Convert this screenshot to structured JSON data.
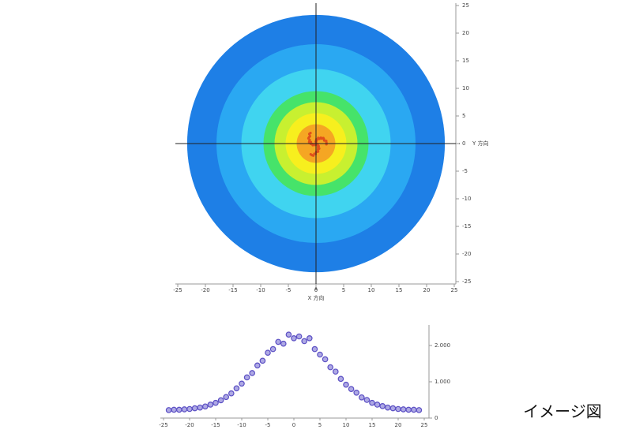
{
  "caption": "イメージ図",
  "chart_data": [
    {
      "type": "heatmap",
      "x_label": "X 方向",
      "y_label": "Y 方向",
      "xlim": [
        -25,
        25
      ],
      "ylim": [
        -25,
        25
      ],
      "xticks": [
        -25,
        -20,
        -15,
        -10,
        -5,
        0,
        5,
        10,
        15,
        20,
        25
      ],
      "yticks": [
        25,
        20,
        15,
        10,
        5,
        0,
        -5,
        -10,
        -15,
        -20,
        -25
      ],
      "rings": [
        {
          "radius": 23.3,
          "color": "#1e7fe6"
        },
        {
          "radius": 18,
          "color": "#2aa8f2"
        },
        {
          "radius": 13.5,
          "color": "#40d4f0"
        },
        {
          "radius": 9.5,
          "color": "#46e36a"
        },
        {
          "radius": 7.5,
          "color": "#c8f030"
        },
        {
          "radius": 5.5,
          "color": "#f7ef1e"
        },
        {
          "radius": 3.5,
          "color": "#f5a623"
        }
      ],
      "crosshair": true
    },
    {
      "type": "scatter",
      "color": "#5b4fc4",
      "x": [
        -24,
        -23,
        -22,
        -21,
        -20,
        -19,
        -18,
        -17,
        -16,
        -15,
        -14,
        -13,
        -12,
        -11,
        -10,
        -9,
        -8,
        -7,
        -6,
        -5,
        -4,
        -3,
        -2,
        -1,
        0,
        1,
        2,
        3,
        4,
        5,
        6,
        7,
        8,
        9,
        10,
        11,
        12,
        13,
        14,
        15,
        16,
        17,
        18,
        19,
        20,
        21,
        22,
        23,
        24
      ],
      "values": [
        0.22,
        0.23,
        0.23,
        0.24,
        0.25,
        0.27,
        0.29,
        0.32,
        0.37,
        0.42,
        0.49,
        0.58,
        0.68,
        0.82,
        0.95,
        1.12,
        1.24,
        1.45,
        1.58,
        1.8,
        1.9,
        2.1,
        2.05,
        2.3,
        2.2,
        2.25,
        2.12,
        2.2,
        1.9,
        1.75,
        1.62,
        1.4,
        1.28,
        1.08,
        0.92,
        0.8,
        0.7,
        0.57,
        0.5,
        0.42,
        0.37,
        0.33,
        0.29,
        0.27,
        0.25,
        0.24,
        0.23,
        0.23,
        0.22
      ],
      "xlim": [
        -25,
        25
      ],
      "ylim": [
        0,
        2.5
      ],
      "xticks": [
        -25,
        -20,
        -15,
        -10,
        -5,
        0,
        5,
        10,
        15,
        20,
        25
      ],
      "yticks": [
        0,
        {
          "value": 1,
          "label": "1.000"
        },
        {
          "value": 2,
          "label": "2.000"
        }
      ]
    }
  ]
}
